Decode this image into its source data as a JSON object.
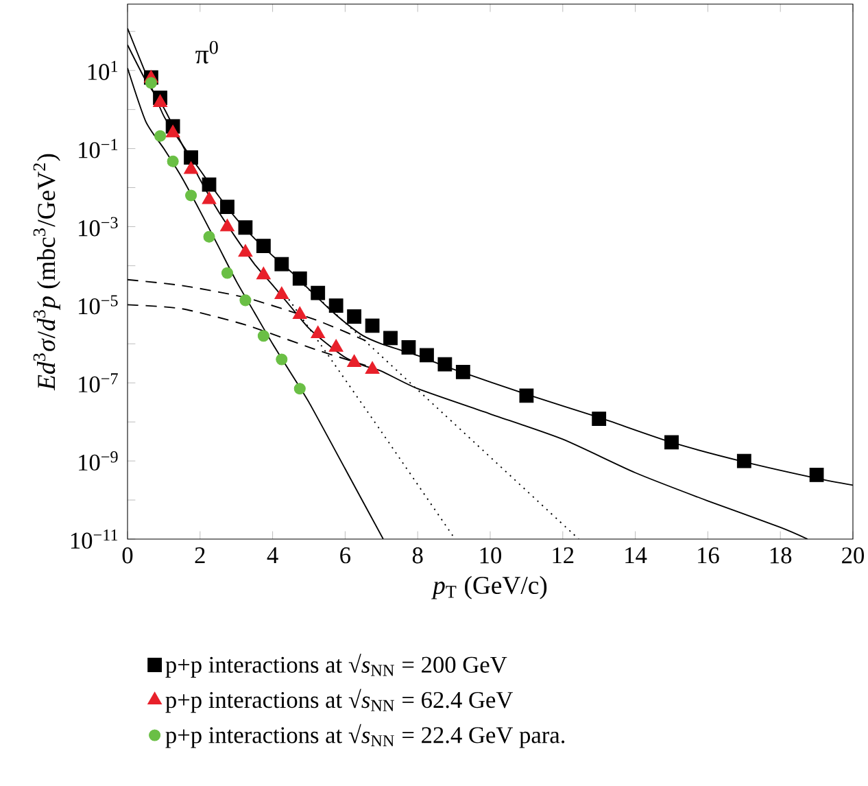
{
  "chart_data": {
    "type": "scatter",
    "xlabel": "*p*$_{T}$ (GeV/c)",
    "ylabel": "*Ed*$^{3}$*σ*/*d*$^{3}$*p* (mbc$^{3}$/GeV$^{2}$)",
    "annotations": [
      "π$^{0}$"
    ],
    "log": "y",
    "xlim": [
      0,
      20
    ],
    "xticks": [
      0,
      2,
      4,
      6,
      8,
      10,
      12,
      14,
      16,
      18,
      20
    ],
    "ylim": [
      1e-11,
      500
    ],
    "yticks": [
      {
        "value": 100,
        "label": null
      },
      {
        "value": 10,
        "label": "10$^{1}$"
      },
      {
        "value": 1,
        "label": null
      },
      {
        "value": 0.1,
        "label": "10$^{−1}$"
      },
      {
        "value": 0.01,
        "label": null
      },
      {
        "value": 0.001,
        "label": "10$^{−3}$"
      },
      {
        "value": 0.0001,
        "label": null
      },
      {
        "value": 1e-05,
        "label": "10$^{−5}$"
      },
      {
        "value": 1e-06,
        "label": null
      },
      {
        "value": 1e-07,
        "label": "10$^{−7}$"
      },
      {
        "value": 1e-08,
        "label": null
      },
      {
        "value": 1e-09,
        "label": "10$^{−9}$"
      },
      {
        "value": 1e-10,
        "label": null
      },
      {
        "value": 1e-11,
        "label": "10$^{−11}$"
      }
    ],
    "grid": false,
    "legend": "bottom",
    "series": [
      {
        "type": "line",
        "color": "#000000",
        "line_style": "solid",
        "marker": "none",
        "x": [
          0,
          0.45,
          1.0,
          1.5,
          2.0,
          2.5,
          3.0,
          3.5,
          4.0,
          4.5,
          5.0,
          5.5,
          6.0,
          6.5,
          7.0,
          8.0,
          9.0,
          11,
          13,
          15,
          17,
          19,
          20
        ],
        "values": [
          120,
          11,
          0.68,
          0.13,
          0.028,
          0.0063,
          0.0016,
          0.0005,
          0.00018,
          7.1e-05,
          2.5e-05,
          8.9e-06,
          3.5e-06,
          1.6e-06,
          1e-06,
          5e-07,
          2.2e-07,
          5.1e-08,
          1.3e-08,
          3e-09,
          9.5e-10,
          3.6e-10,
          2.4e-10
        ]
      },
      {
        "type": "line",
        "color": "#000000",
        "line_style": "solid",
        "marker": "none",
        "x": [
          0,
          0.5,
          1.0,
          1.5,
          2.0,
          2.5,
          3.0,
          3.5,
          4.0,
          4.5,
          5.0,
          5.5,
          6.0,
          6.5,
          7.0,
          8.0,
          10,
          12,
          14,
          16,
          18,
          18.75
        ],
        "values": [
          45,
          5.6,
          1.1,
          0.13,
          0.016,
          0.0025,
          0.0005,
          0.00011,
          3.2e-05,
          8.9e-06,
          2.5e-06,
          1e-06,
          4.5e-07,
          2.8e-07,
          2e-07,
          7.1e-08,
          1.6e-08,
          3.6e-09,
          5e-10,
          9.5e-11,
          2e-11,
          1e-11
        ]
      },
      {
        "type": "line",
        "color": "#000000",
        "line_style": "solid",
        "marker": "none",
        "x": [
          0,
          0.5,
          1.0,
          1.5,
          2.0,
          2.5,
          3.0,
          3.5,
          4.0,
          4.5,
          5.0,
          6.0,
          7.05
        ],
        "values": [
          11.5,
          0.5,
          0.1,
          0.018,
          0.0025,
          0.00032,
          4e-05,
          6.3e-06,
          1e-06,
          1.8e-07,
          3.2e-08,
          6.3e-10,
          1e-11
        ]
      },
      {
        "type": "line",
        "color": "#000000",
        "line_style": "dashed",
        "marker": "none",
        "x": [
          0,
          1.5,
          3.28,
          5.19,
          6.57
        ],
        "values": [
          4.4e-05,
          3.1e-05,
          1.5e-05,
          4.1e-06,
          1.2e-06
        ]
      },
      {
        "type": "line",
        "color": "#000000",
        "line_style": "dashed",
        "marker": "none",
        "x": [
          0,
          1.5,
          3.28,
          5.19,
          6.57
        ],
        "values": [
          1e-05,
          7.9e-06,
          3e-06,
          7.1e-07,
          2.8e-07
        ]
      },
      {
        "type": "line",
        "color": "#000000",
        "line_style": "dotted",
        "marker": "none",
        "x": [
          4.25,
          5.5,
          7,
          9.03
        ],
        "values": [
          2.5e-05,
          5.6e-07,
          5.6e-09,
          1e-11
        ]
      },
      {
        "type": "line",
        "color": "#000000",
        "line_style": "dotted",
        "marker": "none",
        "x": [
          4.75,
          6.5,
          8.58,
          12.44
        ],
        "values": [
          4e-05,
          1.3e-06,
          2.1e-08,
          1e-11
        ]
      },
      {
        "name": "p+p interactions at √*s*$_{NN}$ = 200 GeV",
        "color": "#000000",
        "marker": "square",
        "x": [
          0.65,
          0.9,
          1.25,
          1.75,
          2.25,
          2.75,
          3.25,
          3.75,
          4.25,
          4.75,
          5.25,
          5.75,
          6.25,
          6.75,
          7.25,
          7.75,
          8.25,
          8.75,
          9.25,
          11,
          13,
          15,
          17,
          19
        ],
        "values": [
          6.6,
          2.0,
          0.37,
          0.059,
          0.012,
          0.0032,
          0.00095,
          0.00032,
          0.00011,
          4.7e-05,
          2e-05,
          9.5e-06,
          5e-06,
          2.9e-06,
          1.4e-06,
          8.1e-07,
          5.1e-07,
          3e-07,
          1.9e-07,
          4.7e-08,
          1.2e-08,
          3e-09,
          1e-09,
          4.4e-10
        ]
      },
      {
        "name": "p+p interactions at √*s*$_{NN}$ = 62.4 GeV",
        "color": "#e8202a",
        "marker": "triangle",
        "x": [
          0.65,
          0.9,
          1.25,
          1.75,
          2.25,
          2.75,
          3.25,
          3.75,
          4.25,
          4.75,
          5.25,
          5.75,
          6.25,
          6.75
        ],
        "values": [
          6.3,
          1.5,
          0.25,
          0.029,
          0.0049,
          0.00098,
          0.00022,
          5.8e-05,
          1.8e-05,
          5.6e-06,
          1.8e-06,
          8.1e-07,
          3.3e-07,
          2.2e-07
        ]
      },
      {
        "name": "p+p interactions at √*s*$_{NN}$ = 22.4 GeV para.",
        "color": "#6abf45",
        "marker": "circle",
        "x": [
          0.65,
          0.9,
          1.25,
          1.75,
          2.25,
          2.75,
          3.25,
          3.75,
          4.25,
          4.75
        ],
        "values": [
          4.8,
          0.21,
          0.047,
          0.0063,
          0.00055,
          6.5e-05,
          1.3e-05,
          1.6e-06,
          4e-07,
          7.1e-08
        ]
      }
    ]
  }
}
